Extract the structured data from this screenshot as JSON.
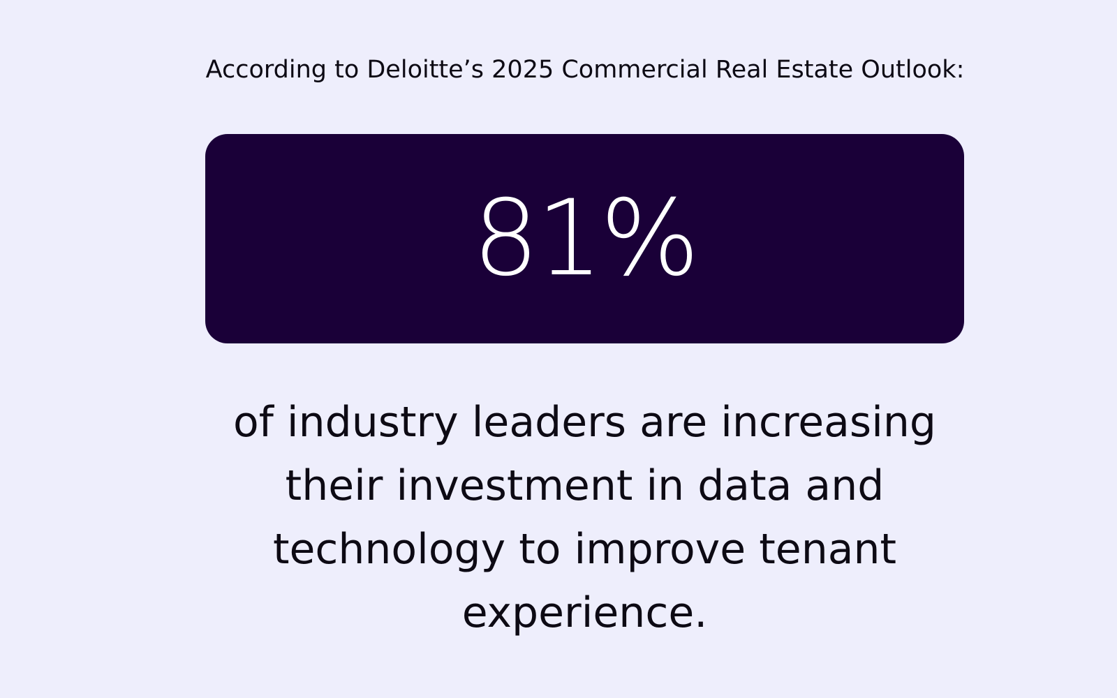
{
  "header": {
    "text": "According to Deloitte’s 2025 Commercial Real Estate Outlook:"
  },
  "stat": {
    "value": "81%"
  },
  "description": {
    "lines": [
      "of industry leaders are increasing",
      "their investment in data and",
      "technology to improve tenant",
      "experience."
    ]
  }
}
